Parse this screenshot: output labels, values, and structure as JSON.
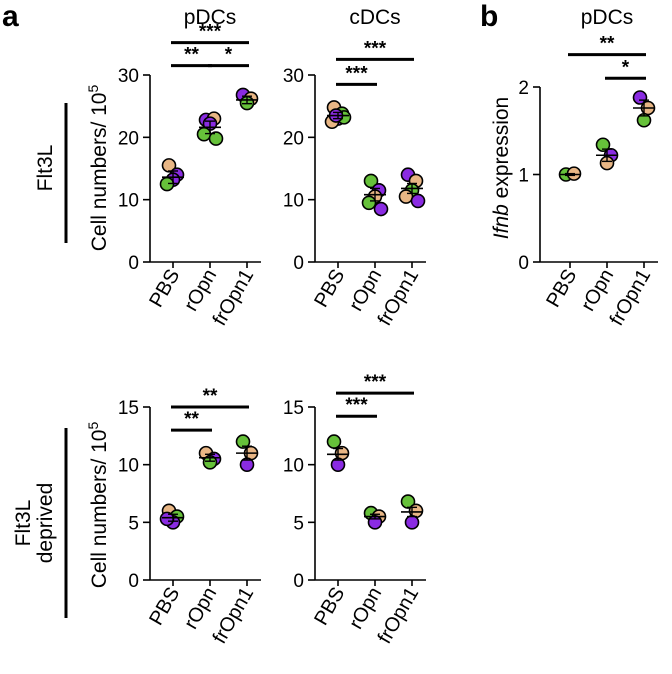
{
  "panel_letters": [
    "a",
    "b"
  ],
  "row_labels": {
    "top": [
      "Flt3L"
    ],
    "bottom": [
      "Flt3L",
      "deprived"
    ]
  },
  "ylabel_cells": "Cell numbers/ 10",
  "ylabel_cells_exp": "5",
  "ylabel_ifnb_italic": "Ifnb",
  "ylabel_ifnb_rest": " expression",
  "colors": {
    "purple": "#8a2be2",
    "green": "#66c13a",
    "tan": "#e8b685"
  },
  "chart_data": [
    {
      "id": "a-top-pdc",
      "type": "scatter",
      "title": "pDCs",
      "categories": [
        "PBS",
        "rOpn",
        "frOpn1"
      ],
      "ylim": [
        0,
        30
      ],
      "yticks": [
        0,
        10,
        20,
        30
      ],
      "show_ylabel": true,
      "means": [
        13.6,
        21.6,
        26.0
      ],
      "sem": [
        1.0,
        1.0,
        0.6
      ],
      "points": [
        {
          "x": 0,
          "y": 15.5,
          "c": "tan"
        },
        {
          "x": 0,
          "y": 14.0,
          "c": "purple"
        },
        {
          "x": 0,
          "y": 13.2,
          "c": "purple"
        },
        {
          "x": 0,
          "y": 12.5,
          "c": "green"
        },
        {
          "x": 1,
          "y": 22.8,
          "c": "purple"
        },
        {
          "x": 1,
          "y": 23.0,
          "c": "tan"
        },
        {
          "x": 1,
          "y": 22.2,
          "c": "purple"
        },
        {
          "x": 1,
          "y": 20.5,
          "c": "green"
        },
        {
          "x": 1,
          "y": 19.8,
          "c": "green"
        },
        {
          "x": 2,
          "y": 26.8,
          "c": "purple"
        },
        {
          "x": 2,
          "y": 26.2,
          "c": "tan"
        },
        {
          "x": 2,
          "y": 25.5,
          "c": "green"
        }
      ],
      "significance": [
        {
          "from": 0,
          "to": 1,
          "label": "**",
          "y": 31.5
        },
        {
          "from": 1,
          "to": 2,
          "label": "*",
          "y": 31.5
        },
        {
          "from": 0,
          "to": 2,
          "label": "***",
          "y": 35.2
        }
      ]
    },
    {
      "id": "a-top-cdc",
      "type": "scatter",
      "title": "cDCs",
      "categories": [
        "PBS",
        "rOpn",
        "frOpn1"
      ],
      "ylim": [
        0,
        30
      ],
      "yticks": [
        0,
        10,
        20,
        30
      ],
      "show_ylabel": false,
      "means": [
        23.5,
        10.8,
        11.8
      ],
      "sem": [
        0.5,
        1.0,
        0.8
      ],
      "points": [
        {
          "x": 0,
          "y": 24.8,
          "c": "tan"
        },
        {
          "x": 0,
          "y": 23.8,
          "c": "green"
        },
        {
          "x": 0,
          "y": 23.0,
          "c": "purple"
        },
        {
          "x": 0,
          "y": 22.5,
          "c": "tan"
        },
        {
          "x": 0,
          "y": 23.2,
          "c": "green"
        },
        {
          "x": 0,
          "y": 23.5,
          "c": "purple"
        },
        {
          "x": 1,
          "y": 13.0,
          "c": "green"
        },
        {
          "x": 1,
          "y": 11.5,
          "c": "purple"
        },
        {
          "x": 1,
          "y": 10.5,
          "c": "tan"
        },
        {
          "x": 1,
          "y": 9.5,
          "c": "green"
        },
        {
          "x": 1,
          "y": 8.5,
          "c": "purple"
        },
        {
          "x": 2,
          "y": 14.0,
          "c": "purple"
        },
        {
          "x": 2,
          "y": 13.0,
          "c": "tan"
        },
        {
          "x": 2,
          "y": 11.5,
          "c": "green"
        },
        {
          "x": 2,
          "y": 10.5,
          "c": "tan"
        },
        {
          "x": 2,
          "y": 9.8,
          "c": "purple"
        }
      ],
      "significance": [
        {
          "from": 0,
          "to": 1,
          "label": "***",
          "y": 28.5
        },
        {
          "from": 0,
          "to": 2,
          "label": "***",
          "y": 32.5
        }
      ]
    },
    {
      "id": "b-pdc",
      "type": "scatter",
      "title": "pDCs",
      "categories": [
        "PBS",
        "rOpn",
        "frOpn1"
      ],
      "ylim": [
        0,
        2
      ],
      "yticks": [
        0,
        1,
        2
      ],
      "show_ylabel": true,
      "means": [
        1.0,
        1.22,
        1.76
      ],
      "sem": [
        0.01,
        0.07,
        0.09
      ],
      "points": [
        {
          "x": 0,
          "y": 1.0,
          "c": "green"
        },
        {
          "x": 0,
          "y": 1.01,
          "c": "tan"
        },
        {
          "x": 1,
          "y": 1.34,
          "c": "green"
        },
        {
          "x": 1,
          "y": 1.22,
          "c": "purple"
        },
        {
          "x": 1,
          "y": 1.13,
          "c": "tan"
        },
        {
          "x": 2,
          "y": 1.88,
          "c": "purple"
        },
        {
          "x": 2,
          "y": 1.76,
          "c": "tan"
        },
        {
          "x": 2,
          "y": 1.62,
          "c": "green"
        }
      ],
      "significance": [
        {
          "from": 1,
          "to": 2,
          "label": "*",
          "y": 2.1
        },
        {
          "from": 0,
          "to": 2,
          "label": "**",
          "y": 2.37
        }
      ]
    },
    {
      "id": "a-bottom-pdc",
      "type": "scatter",
      "title": "",
      "categories": [
        "PBS",
        "rOpn",
        "frOpn1"
      ],
      "ylim": [
        0,
        15
      ],
      "yticks": [
        0,
        5,
        10,
        15
      ],
      "show_ylabel": true,
      "means": [
        5.4,
        10.6,
        11.0
      ],
      "sem": [
        0.3,
        0.3,
        0.6
      ],
      "points": [
        {
          "x": 0,
          "y": 6.0,
          "c": "tan"
        },
        {
          "x": 0,
          "y": 5.5,
          "c": "green"
        },
        {
          "x": 0,
          "y": 5.0,
          "c": "purple"
        },
        {
          "x": 0,
          "y": 5.3,
          "c": "purple"
        },
        {
          "x": 1,
          "y": 11.0,
          "c": "tan"
        },
        {
          "x": 1,
          "y": 10.5,
          "c": "purple"
        },
        {
          "x": 1,
          "y": 10.2,
          "c": "green"
        },
        {
          "x": 2,
          "y": 12.0,
          "c": "green"
        },
        {
          "x": 2,
          "y": 11.0,
          "c": "tan"
        },
        {
          "x": 2,
          "y": 10.0,
          "c": "purple"
        }
      ],
      "significance": [
        {
          "from": 0,
          "to": 1,
          "label": "**",
          "y": 13.0
        },
        {
          "from": 0,
          "to": 2,
          "label": "**",
          "y": 15.0
        }
      ]
    },
    {
      "id": "a-bottom-cdc",
      "type": "scatter",
      "title": "",
      "categories": [
        "PBS",
        "rOpn",
        "frOpn1"
      ],
      "ylim": [
        0,
        15
      ],
      "yticks": [
        0,
        5,
        10,
        15
      ],
      "show_ylabel": false,
      "means": [
        10.9,
        5.5,
        5.9
      ],
      "sem": [
        0.5,
        0.2,
        0.4
      ],
      "points": [
        {
          "x": 0,
          "y": 12.0,
          "c": "green"
        },
        {
          "x": 0,
          "y": 11.0,
          "c": "tan"
        },
        {
          "x": 0,
          "y": 10.0,
          "c": "purple"
        },
        {
          "x": 1,
          "y": 5.8,
          "c": "green"
        },
        {
          "x": 1,
          "y": 5.5,
          "c": "tan"
        },
        {
          "x": 1,
          "y": 5.0,
          "c": "purple"
        },
        {
          "x": 2,
          "y": 6.8,
          "c": "green"
        },
        {
          "x": 2,
          "y": 6.0,
          "c": "tan"
        },
        {
          "x": 2,
          "y": 5.0,
          "c": "purple"
        }
      ],
      "significance": [
        {
          "from": 0,
          "to": 1,
          "label": "***",
          "y": 14.2
        },
        {
          "from": 0,
          "to": 2,
          "label": "***",
          "y": 16.2
        }
      ]
    }
  ]
}
